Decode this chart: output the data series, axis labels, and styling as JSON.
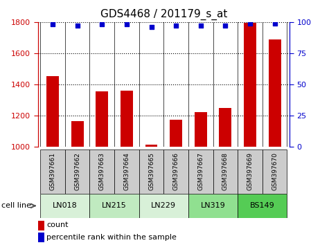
{
  "title": "GDS4468 / 201179_s_at",
  "samples": [
    "GSM397661",
    "GSM397662",
    "GSM397663",
    "GSM397664",
    "GSM397665",
    "GSM397666",
    "GSM397667",
    "GSM397668",
    "GSM397669",
    "GSM397670"
  ],
  "counts": [
    1455,
    1165,
    1355,
    1360,
    1015,
    1175,
    1225,
    1248,
    1795,
    1690
  ],
  "percentile_ranks": [
    98,
    97,
    98,
    98,
    96,
    97,
    97,
    97,
    99,
    99
  ],
  "cell_lines": [
    {
      "name": "LN018",
      "samples": [
        0,
        1
      ],
      "color": "#d8f0d8"
    },
    {
      "name": "LN215",
      "samples": [
        2,
        3
      ],
      "color": "#c0eac0"
    },
    {
      "name": "LN229",
      "samples": [
        4,
        5
      ],
      "color": "#d8f0d8"
    },
    {
      "name": "LN319",
      "samples": [
        6,
        7
      ],
      "color": "#90e090"
    },
    {
      "name": "BS149",
      "samples": [
        8,
        9
      ],
      "color": "#55cc55"
    }
  ],
  "ylim_left": [
    1000,
    1800
  ],
  "ylim_right": [
    0,
    100
  ],
  "yticks_left": [
    1000,
    1200,
    1400,
    1600,
    1800
  ],
  "yticks_right": [
    0,
    25,
    50,
    75,
    100
  ],
  "bar_color": "#cc0000",
  "dot_color": "#0000cc",
  "bar_width": 0.5,
  "label_count": "count",
  "label_percentile": "percentile rank within the sample",
  "cell_line_label": "cell line",
  "sample_box_color": "#cccccc",
  "figsize": [
    4.75,
    3.54
  ],
  "dpi": 100
}
